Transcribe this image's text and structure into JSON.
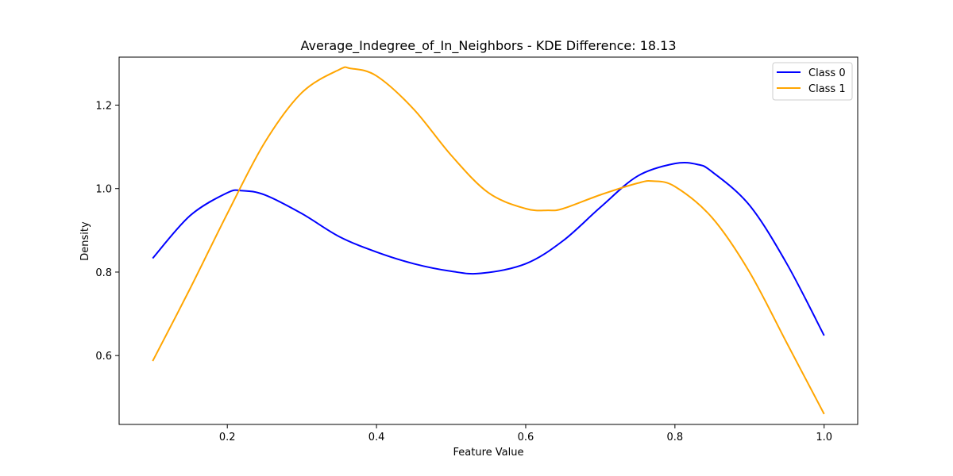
{
  "chart_data": {
    "type": "line",
    "title": "Average_Indegree_of_In_Neighbors - KDE Difference: 18.13",
    "xlabel": "Feature Value",
    "ylabel": "Density",
    "xlim": [
      0.055,
      1.045
    ],
    "ylim": [
      0.435,
      1.315
    ],
    "xticks": [
      0.2,
      0.4,
      0.6,
      0.8,
      1.0
    ],
    "xtick_labels": [
      "0.2",
      "0.4",
      "0.6",
      "0.8",
      "1.0"
    ],
    "yticks": [
      0.6,
      0.8,
      1.0,
      1.2
    ],
    "ytick_labels": [
      "0.6",
      "0.8",
      "1.0",
      "1.2"
    ],
    "grid": false,
    "legend_position": "top-right",
    "series": [
      {
        "name": "Class 0",
        "color": "#0000ff",
        "x": [
          0.1,
          0.15,
          0.2,
          0.22,
          0.25,
          0.3,
          0.35,
          0.4,
          0.45,
          0.5,
          0.54,
          0.6,
          0.65,
          0.7,
          0.75,
          0.8,
          0.83,
          0.85,
          0.9,
          0.95,
          1.0
        ],
        "y": [
          0.833,
          0.935,
          0.99,
          0.995,
          0.985,
          0.94,
          0.885,
          0.848,
          0.82,
          0.802,
          0.797,
          0.82,
          0.875,
          0.955,
          1.03,
          1.06,
          1.058,
          1.04,
          0.96,
          0.82,
          0.648
        ]
      },
      {
        "name": "Class 1",
        "color": "#ffa500",
        "x": [
          0.1,
          0.15,
          0.2,
          0.25,
          0.3,
          0.35,
          0.365,
          0.4,
          0.45,
          0.5,
          0.55,
          0.6,
          0.63,
          0.65,
          0.7,
          0.75,
          0.77,
          0.8,
          0.85,
          0.9,
          0.95,
          1.0
        ],
        "y": [
          0.587,
          0.76,
          0.94,
          1.11,
          1.23,
          1.285,
          1.288,
          1.27,
          1.19,
          1.08,
          0.99,
          0.952,
          0.948,
          0.952,
          0.985,
          1.013,
          1.018,
          1.005,
          0.93,
          0.8,
          0.63,
          0.46
        ]
      }
    ]
  }
}
